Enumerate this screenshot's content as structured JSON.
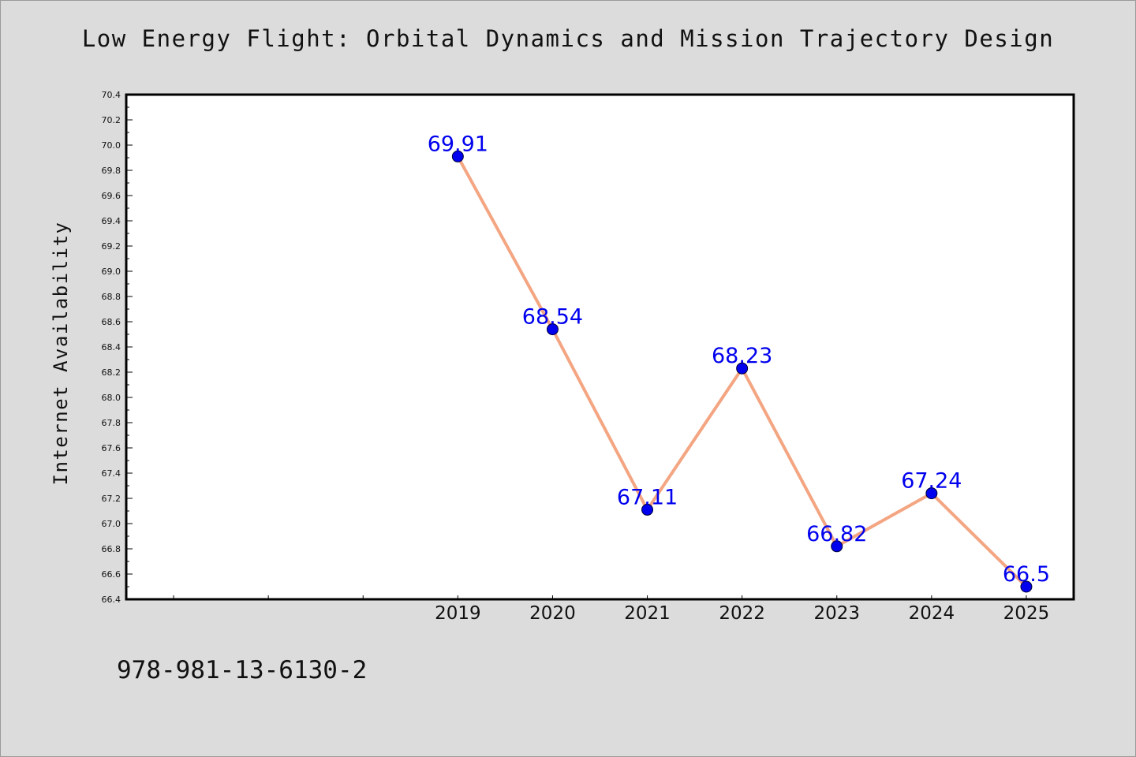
{
  "title": "Low Energy Flight: Orbital Dynamics and Mission Trajectory Design",
  "footer_text": "978-981-13-6130-2",
  "colors": {
    "background": "#dcdcdc",
    "plot_background": "#ffffff",
    "line": "#f4a582",
    "marker_fill": "#0000ee",
    "label": "#0000ee",
    "axis": "#000000"
  },
  "chart_data": {
    "type": "line",
    "title": "Low Energy Flight: Orbital Dynamics and Mission Trajectory Design",
    "xlabel": "",
    "ylabel": "Internet Availability",
    "categories": [
      "2019",
      "2020",
      "2021",
      "2022",
      "2023",
      "2024",
      "2025"
    ],
    "x": [
      2019,
      2020,
      2021,
      2022,
      2023,
      2024,
      2025
    ],
    "xlim": [
      2015.5,
      2025.5
    ],
    "ylim": [
      66.4,
      70.4
    ],
    "yticks": [
      "66.4",
      "66.6",
      "66.8",
      "67.0",
      "67.2",
      "67.4",
      "67.6",
      "67.8",
      "68.0",
      "68.2",
      "68.4",
      "68.6",
      "68.8",
      "69.0",
      "69.2",
      "69.4",
      "69.6",
      "69.8",
      "70.0",
      "70.2",
      "70.4"
    ],
    "series": [
      {
        "values": [
          69.91,
          68.54,
          67.11,
          68.23,
          66.82,
          67.24,
          66.5
        ],
        "labels": [
          "69.91",
          "68.54",
          "67.11",
          "68.23",
          "66.82",
          "67.24",
          "66.5"
        ]
      }
    ],
    "grid": false,
    "legend": "none"
  }
}
